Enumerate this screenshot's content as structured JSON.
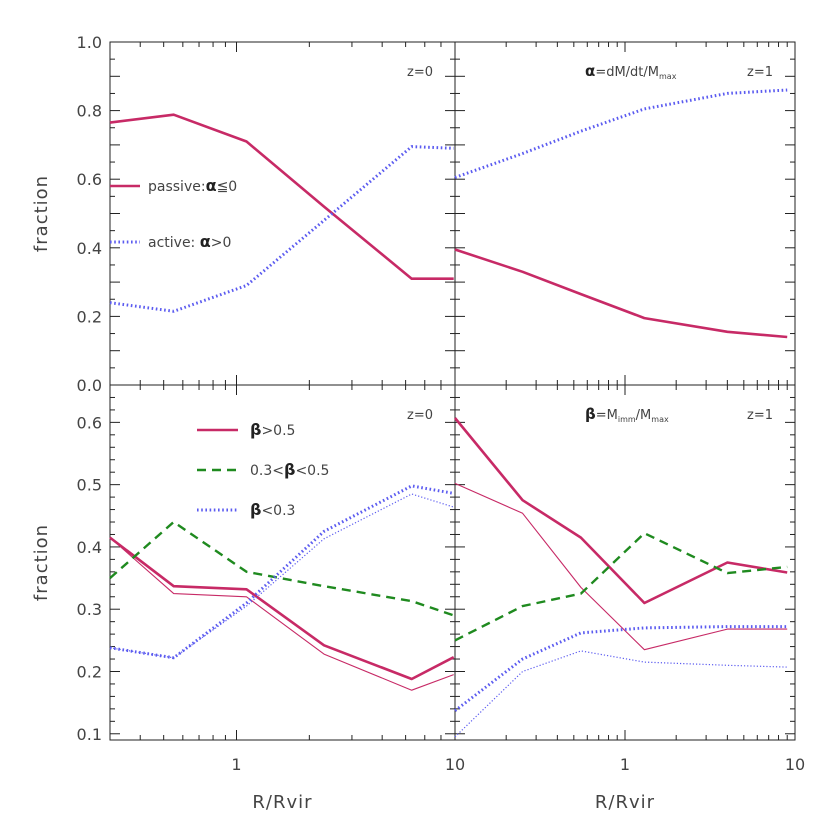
{
  "chart_data": [
    {
      "panel": "top-left",
      "type": "line",
      "xscale": "log",
      "xlim": [
        0.3,
        8
      ],
      "ylim": [
        0.0,
        1.0
      ],
      "ylabel": "fraction",
      "xlabel": "",
      "yticks": [
        "0.0",
        "0.2",
        "0.4",
        "0.6",
        "0.8",
        "1.0"
      ],
      "xticks": [],
      "annotations": [
        "z=0"
      ],
      "legend": [
        {
          "text_pre": "passive:",
          "sym": "α",
          "text_post": "≦0",
          "series": 0
        },
        {
          "text_pre": "active:  ",
          "sym": "α",
          "text_post": ">0",
          "series": 1
        }
      ],
      "series": [
        {
          "name": "passive",
          "style": "solid-thick",
          "color": "#c72a66",
          "x": [
            0.3,
            0.55,
            1.1,
            2.3,
            5.3,
            7.9
          ],
          "y": [
            0.765,
            0.788,
            0.71,
            0.52,
            0.31,
            0.31
          ]
        },
        {
          "name": "active",
          "style": "dotted",
          "color": "#5b5bf0",
          "x": [
            0.3,
            0.55,
            1.1,
            2.3,
            5.3,
            7.9
          ],
          "y": [
            0.24,
            0.215,
            0.29,
            0.48,
            0.695,
            0.69
          ]
        }
      ]
    },
    {
      "panel": "top-right",
      "type": "line",
      "xscale": "log",
      "xlim": [
        0.1,
        10
      ],
      "ylim": [
        0.0,
        1.0
      ],
      "ylabel": "",
      "xlabel": "",
      "yticks": [],
      "xticks": [],
      "annotations": [
        "z=1"
      ],
      "title_sym": "α",
      "title_eq": "=dM/dt/M",
      "title_sub": "max",
      "series": [
        {
          "name": "passive",
          "style": "solid-thick",
          "color": "#c72a66",
          "x": [
            0.1,
            0.25,
            0.55,
            1.3,
            4.0,
            9.0
          ],
          "y": [
            0.395,
            0.33,
            0.265,
            0.195,
            0.155,
            0.14
          ]
        },
        {
          "name": "active",
          "style": "dotted",
          "color": "#5b5bf0",
          "x": [
            0.1,
            0.25,
            0.55,
            1.3,
            4.0,
            9.0
          ],
          "y": [
            0.605,
            0.675,
            0.74,
            0.805,
            0.85,
            0.86
          ]
        }
      ]
    },
    {
      "panel": "bottom-left",
      "type": "line",
      "xscale": "log",
      "xlim": [
        0.3,
        8
      ],
      "ylim": [
        0.09,
        0.66
      ],
      "ylabel": "fraction",
      "xlabel": "R/Rvir",
      "yticks": [
        "0.1",
        "0.2",
        "0.3",
        "0.4",
        "0.5",
        "0.6"
      ],
      "xticks": [
        "1"
      ],
      "annotations": [
        "z=0"
      ],
      "legend": [
        {
          "text_pre": "",
          "sym": "β",
          "text_post": ">0.5",
          "series": 0
        },
        {
          "text_pre": "0.3<",
          "sym": "β",
          "text_post": "<0.5",
          "series": 2
        },
        {
          "text_pre": "",
          "sym": "β",
          "text_post": "<0.3",
          "series": 3
        }
      ],
      "series": [
        {
          "name": "beta>0.5",
          "style": "solid-thick",
          "color": "#c72a66",
          "x": [
            0.3,
            0.55,
            1.1,
            2.3,
            5.3,
            7.9
          ],
          "y": [
            0.415,
            0.337,
            0.332,
            0.242,
            0.188,
            0.223
          ]
        },
        {
          "name": "beta>0.5 thin",
          "style": "solid-thin",
          "color": "#c72a66",
          "x": [
            0.3,
            0.55,
            1.1,
            2.3,
            5.3,
            7.9
          ],
          "y": [
            0.415,
            0.325,
            0.32,
            0.228,
            0.17,
            0.195
          ]
        },
        {
          "name": "0.3<beta<0.5",
          "style": "dashed",
          "color": "#1f8a1f",
          "x": [
            0.3,
            0.55,
            1.1,
            2.3,
            5.3,
            7.9
          ],
          "y": [
            0.35,
            0.44,
            0.36,
            0.337,
            0.313,
            0.29
          ]
        },
        {
          "name": "beta<0.3",
          "style": "dotted",
          "color": "#5b5bf0",
          "x": [
            0.3,
            0.55,
            1.1,
            2.3,
            5.3,
            7.9
          ],
          "y": [
            0.238,
            0.222,
            0.31,
            0.425,
            0.498,
            0.486
          ]
        },
        {
          "name": "beta<0.3 thin",
          "style": "dotted-thin",
          "color": "#5b5bf0",
          "x": [
            0.3,
            0.55,
            1.1,
            2.3,
            5.3,
            7.9
          ],
          "y": [
            0.238,
            0.222,
            0.305,
            0.413,
            0.485,
            0.464
          ]
        }
      ]
    },
    {
      "panel": "bottom-right",
      "type": "line",
      "xscale": "log",
      "xlim": [
        0.1,
        10
      ],
      "ylim": [
        0.09,
        0.66
      ],
      "ylabel": "",
      "xlabel": "R/Rvir",
      "yticks": [],
      "xticks": [
        "10",
        "1",
        "10"
      ],
      "annotations": [
        "z=1"
      ],
      "title_sym": "β",
      "title_eq": "=M",
      "title_sub": "imm",
      "title_eq2": "/M",
      "title_sub2": "max",
      "series": [
        {
          "name": "beta>0.5",
          "style": "solid-thick",
          "color": "#c72a66",
          "x": [
            0.1,
            0.25,
            0.55,
            1.3,
            4.0,
            9.0
          ],
          "y": [
            0.607,
            0.475,
            0.415,
            0.31,
            0.375,
            0.359
          ]
        },
        {
          "name": "beta>0.5 thin",
          "style": "solid-thin",
          "color": "#c72a66",
          "x": [
            0.1,
            0.25,
            0.55,
            1.3,
            4.0,
            9.0
          ],
          "y": [
            0.502,
            0.454,
            0.335,
            0.235,
            0.268,
            0.268
          ]
        },
        {
          "name": "0.3<beta<0.5",
          "style": "dashed",
          "color": "#1f8a1f",
          "x": [
            0.1,
            0.25,
            0.55,
            1.3,
            4.0,
            9.0
          ],
          "y": [
            0.25,
            0.305,
            0.325,
            0.422,
            0.358,
            0.368
          ]
        },
        {
          "name": "beta<0.3",
          "style": "dotted",
          "color": "#5b5bf0",
          "x": [
            0.1,
            0.25,
            0.55,
            1.3,
            4.0,
            9.0
          ],
          "y": [
            0.137,
            0.22,
            0.262,
            0.27,
            0.272,
            0.272
          ]
        },
        {
          "name": "beta<0.3 thin",
          "style": "dotted-thin",
          "color": "#5b5bf0",
          "x": [
            0.1,
            0.25,
            0.55,
            1.3,
            4.0,
            9.0
          ],
          "y": [
            0.095,
            0.2,
            0.233,
            0.215,
            0.21,
            0.207
          ]
        }
      ]
    }
  ]
}
